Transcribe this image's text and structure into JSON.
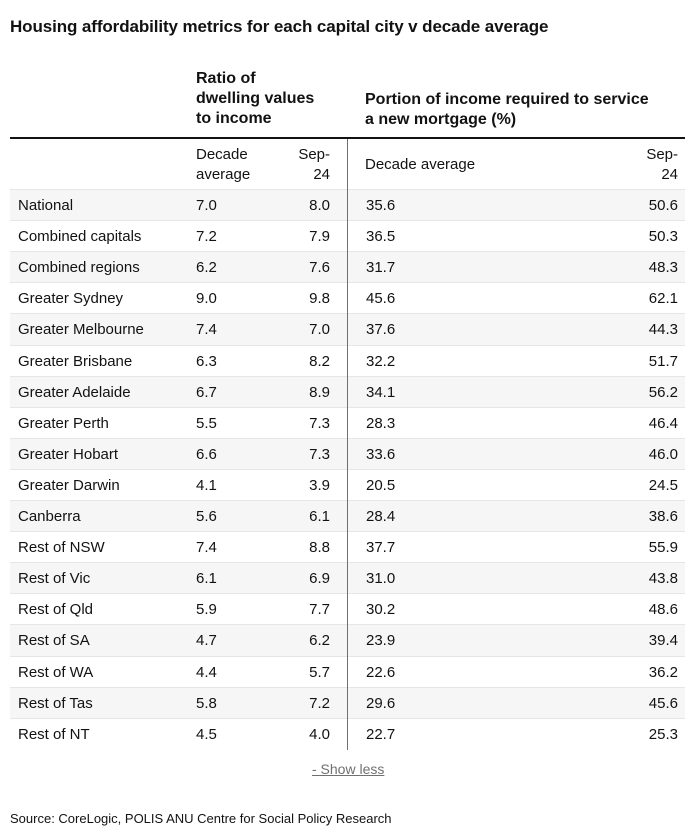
{
  "title": "Housing affordability metrics for each capital city v decade average",
  "chart_data": {
    "type": "table",
    "title": "Housing affordability metrics for each capital city v decade average",
    "column_groups": [
      {
        "label_lines": [
          "Ratio of",
          "dwelling values",
          "to income"
        ],
        "columns": [
          "Decade average",
          "Sep-24"
        ]
      },
      {
        "label_lines": [
          "Portion of income required to service",
          "a new mortgage (%)"
        ],
        "columns": [
          "Decade average",
          "Sep-24"
        ]
      }
    ],
    "subheaders": {
      "g1_decade": [
        "Decade",
        "average"
      ],
      "g1_sep": [
        "Sep-",
        "24"
      ],
      "g2_decade": [
        "Decade average"
      ],
      "g2_sep": [
        "Sep-",
        "24"
      ]
    },
    "rows": [
      {
        "name": "National",
        "values": [
          "7.0",
          "8.0",
          "35.6",
          "50.6"
        ]
      },
      {
        "name": "Combined capitals",
        "values": [
          "7.2",
          "7.9",
          "36.5",
          "50.3"
        ]
      },
      {
        "name": "Combined regions",
        "values": [
          "6.2",
          "7.6",
          "31.7",
          "48.3"
        ]
      },
      {
        "name": "Greater Sydney",
        "values": [
          "9.0",
          "9.8",
          "45.6",
          "62.1"
        ]
      },
      {
        "name": "Greater Melbourne",
        "values": [
          "7.4",
          "7.0",
          "37.6",
          "44.3"
        ]
      },
      {
        "name": "Greater Brisbane",
        "values": [
          "6.3",
          "8.2",
          "32.2",
          "51.7"
        ]
      },
      {
        "name": "Greater Adelaide",
        "values": [
          "6.7",
          "8.9",
          "34.1",
          "56.2"
        ]
      },
      {
        "name": "Greater Perth",
        "values": [
          "5.5",
          "7.3",
          "28.3",
          "46.4"
        ]
      },
      {
        "name": "Greater Hobart",
        "values": [
          "6.6",
          "7.3",
          "33.6",
          "46.0"
        ]
      },
      {
        "name": "Greater Darwin",
        "values": [
          "4.1",
          "3.9",
          "20.5",
          "24.5"
        ]
      },
      {
        "name": "Canberra",
        "values": [
          "5.6",
          "6.1",
          "28.4",
          "38.6"
        ]
      },
      {
        "name": "Rest of NSW",
        "values": [
          "7.4",
          "8.8",
          "37.7",
          "55.9"
        ]
      },
      {
        "name": "Rest of Vic",
        "values": [
          "6.1",
          "6.9",
          "31.0",
          "43.8"
        ]
      },
      {
        "name": "Rest of Qld",
        "values": [
          "5.9",
          "7.7",
          "30.2",
          "48.6"
        ]
      },
      {
        "name": "Rest of SA",
        "values": [
          "4.7",
          "6.2",
          "23.9",
          "39.4"
        ]
      },
      {
        "name": "Rest of WA",
        "values": [
          "4.4",
          "5.7",
          "22.6",
          "36.2"
        ]
      },
      {
        "name": "Rest of Tas",
        "values": [
          "5.8",
          "7.2",
          "29.6",
          "45.6"
        ]
      },
      {
        "name": "Rest of NT",
        "values": [
          "4.5",
          "4.0",
          "22.7",
          "25.3"
        ]
      }
    ],
    "row_shading": "alternating"
  },
  "show_less_label": "- Show less",
  "source": "Source: CoreLogic, POLIS ANU Centre for Social Policy Research"
}
